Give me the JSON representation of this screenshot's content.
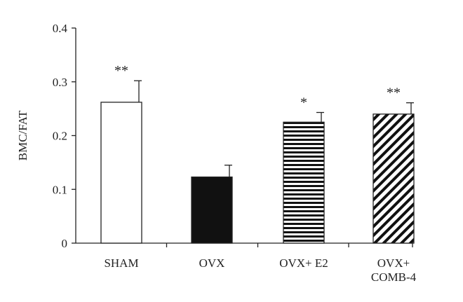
{
  "chart_data": {
    "type": "bar",
    "title": "",
    "xlabel": "",
    "ylabel": "BMC/FAT",
    "ylim": [
      0,
      0.4
    ],
    "yticks": [
      {
        "value": 0,
        "label": "0"
      },
      {
        "value": 0.1,
        "label": "0.1"
      },
      {
        "value": 0.2,
        "label": "0.2"
      },
      {
        "value": 0.3,
        "label": "0.3"
      },
      {
        "value": 0.4,
        "label": "0.4"
      }
    ],
    "grid": false,
    "categories": [
      {
        "lines": [
          "SHAM"
        ]
      },
      {
        "lines": [
          "OVX"
        ]
      },
      {
        "lines": [
          "OVX+ E2"
        ]
      },
      {
        "lines": [
          "OVX+",
          "COMB-4"
        ]
      }
    ],
    "values": [
      0.262,
      0.123,
      0.225,
      0.24
    ],
    "errors": [
      0.04,
      0.022,
      0.018,
      0.021
    ],
    "significance": [
      "**",
      "",
      "*",
      "**"
    ],
    "fills": [
      "white",
      "black",
      "horizontal-stripes",
      "diagonal-stripes"
    ]
  }
}
